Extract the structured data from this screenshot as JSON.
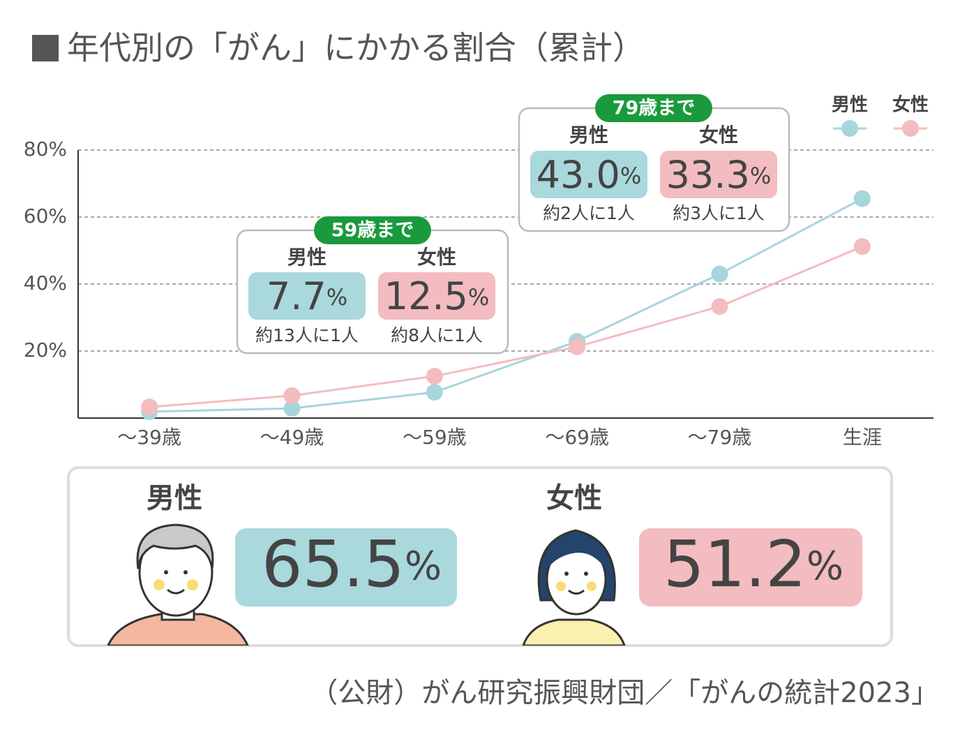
{
  "title": "年代別の「がん」にかかる割合（累計）",
  "chart_data": {
    "type": "line",
    "categories": [
      "〜39歳",
      "〜49歳",
      "〜59歳",
      "〜69歳",
      "〜79歳",
      "生涯"
    ],
    "series": [
      {
        "name": "男性",
        "color": "#a6d6dc",
        "values": [
          1.9,
          2.9,
          7.7,
          22.9,
          43.0,
          65.5
        ]
      },
      {
        "name": "女性",
        "color": "#f3bcc0",
        "values": [
          3.3,
          6.7,
          12.5,
          21.3,
          33.3,
          51.2
        ]
      }
    ],
    "ylim": [
      0,
      80
    ],
    "yticks": [
      {
        "value": 20,
        "label": "20%"
      },
      {
        "value": 40,
        "label": "40%"
      },
      {
        "value": 60,
        "label": "60%"
      },
      {
        "value": 80,
        "label": "80%"
      }
    ],
    "grid": true,
    "legend": "top-right"
  },
  "callouts": [
    {
      "label": "59歳まで",
      "items": [
        {
          "name": "男性",
          "value": "7.7",
          "unit": "%",
          "note": "約13人に1人"
        },
        {
          "name": "女性",
          "value": "12.5",
          "unit": "%",
          "note": "約8人に1人"
        }
      ]
    },
    {
      "label": "79歳まで",
      "items": [
        {
          "name": "男性",
          "value": "43.0",
          "unit": "%",
          "note": "約2人に1人"
        },
        {
          "name": "女性",
          "value": "33.3",
          "unit": "%",
          "note": "約3人に1人"
        }
      ]
    }
  ],
  "lifetime": [
    {
      "name": "男性",
      "value": "65.5",
      "unit": "%"
    },
    {
      "name": "女性",
      "value": "51.2",
      "unit": "%"
    }
  ],
  "source": "（公財）がん研究振興財団／「がんの統計2023」"
}
